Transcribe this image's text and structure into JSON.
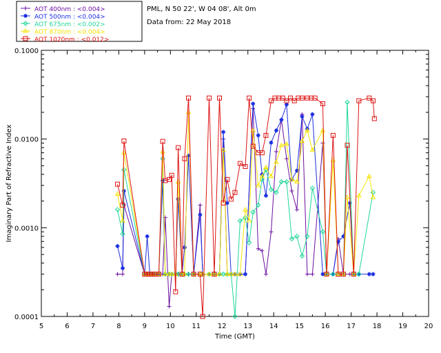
{
  "chart_data": {
    "type": "line",
    "title_lines": [
      "PML, N 50 22', W 04 08', Alt 0m",
      "Data from: 22 May 2018"
    ],
    "xlabel": "Time (GMT)",
    "ylabel": "Imaginary Part of Refractive Index",
    "xlim": [
      5,
      20
    ],
    "ylim": [
      0.0001,
      0.1
    ],
    "yscale": "log",
    "xticks": [
      5,
      6,
      7,
      8,
      9,
      10,
      11,
      12,
      13,
      14,
      15,
      16,
      17,
      18,
      19,
      20
    ],
    "xtick_labels": [
      "5",
      "6",
      "7",
      "8",
      "9",
      "10",
      "11",
      "12",
      "13",
      "14",
      "15",
      "16",
      "17",
      "18",
      "19",
      "20"
    ],
    "yticks": [
      0.0001,
      0.001,
      0.01,
      0.1
    ],
    "ytick_labels": [
      "0.0001",
      "0.0010",
      "0.0100",
      "0.1000"
    ],
    "legend_position": "top-left",
    "series": [
      {
        "name": "AOT  400nm : <0.004>",
        "color": "#6a0d9e",
        "marker": "plus",
        "x": [
          7.95,
          8.15,
          8.2,
          9.0,
          9.1,
          9.2,
          9.3,
          9.4,
          9.55,
          9.7,
          9.8,
          9.95,
          10.05,
          10.2,
          10.3,
          10.45,
          10.55,
          10.7,
          10.9,
          11.15,
          11.25,
          11.5,
          11.7,
          11.9,
          12.05,
          12.2,
          12.35,
          12.5,
          12.7,
          12.9,
          13.2,
          13.4,
          13.55,
          13.7,
          13.9,
          14.1,
          14.3,
          14.5,
          14.7,
          14.9,
          15.1,
          15.3,
          15.5,
          15.9,
          16.05,
          16.3,
          16.5,
          16.7,
          16.95,
          17.1,
          17.3
        ],
        "y": [
          0.0003,
          0.0003,
          0.0018,
          0.0003,
          0.0003,
          0.0003,
          0.0003,
          0.0003,
          0.0003,
          0.0003,
          0.0013,
          0.00013,
          0.0003,
          0.0003,
          0.0003,
          0.0003,
          0.0003,
          0.0003,
          0.0003,
          0.0018,
          0.0003,
          0.0003,
          0.0003,
          0.0003,
          0.01,
          0.0003,
          0.0003,
          0.0003,
          0.0003,
          0.0003,
          0.022,
          0.00058,
          0.00055,
          0.0003,
          0.0009,
          0.0072,
          0.0165,
          0.006,
          0.0026,
          0.0016,
          0.019,
          0.0003,
          0.0003,
          0.009,
          0.0003,
          0.0003,
          0.00075,
          0.0003,
          0.0003,
          0.0003,
          0.0003
        ]
      },
      {
        "name": "AOT  500nm : <0.004>",
        "color": "#1a2ee0",
        "marker": "star",
        "x": [
          7.95,
          8.15,
          8.2,
          9.0,
          9.1,
          9.2,
          9.3,
          9.4,
          9.55,
          9.7,
          9.8,
          9.95,
          10.05,
          10.2,
          10.3,
          10.45,
          10.55,
          10.7,
          10.9,
          11.15,
          11.25,
          11.5,
          11.7,
          11.9,
          12.05,
          12.2,
          12.35,
          12.5,
          12.7,
          12.9,
          13.2,
          13.4,
          13.55,
          13.7,
          13.9,
          14.1,
          14.3,
          14.5,
          14.7,
          14.9,
          15.1,
          15.3,
          15.5,
          15.9,
          16.05,
          16.3,
          16.5,
          16.7,
          16.95,
          17.1,
          17.3,
          17.7,
          17.85
        ],
        "y": [
          0.00062,
          0.00035,
          0.0026,
          0.0003,
          0.0008,
          0.0003,
          0.0003,
          0.0003,
          0.0003,
          0.0034,
          0.0003,
          0.0003,
          0.0003,
          0.0003,
          0.0021,
          0.0003,
          0.0006,
          0.0065,
          0.0003,
          0.0014,
          0.0003,
          0.0003,
          0.0003,
          0.0003,
          0.012,
          0.0019,
          0.0003,
          0.0003,
          0.0003,
          0.0003,
          0.025,
          0.011,
          0.004,
          0.0023,
          0.0091,
          0.0125,
          0.0165,
          0.0245,
          0.0035,
          0.0044,
          0.018,
          0.013,
          0.019,
          0.0003,
          0.0003,
          0.0003,
          0.0007,
          0.0008,
          0.0019,
          0.0003,
          0.0003,
          0.0003,
          0.0003
        ]
      },
      {
        "name": "AOT  675nm : <0.002>",
        "color": "#1ed699",
        "marker": "diamond",
        "x": [
          7.95,
          8.15,
          8.2,
          9.0,
          9.1,
          9.2,
          9.3,
          9.4,
          9.55,
          9.7,
          9.8,
          9.95,
          10.05,
          10.2,
          10.3,
          10.45,
          10.55,
          10.7,
          10.9,
          11.15,
          11.25,
          11.5,
          11.7,
          11.9,
          12.05,
          12.2,
          12.35,
          12.5,
          12.7,
          12.9,
          13.05,
          13.2,
          13.4,
          13.55,
          13.7,
          13.9,
          14.1,
          14.3,
          14.5,
          14.7,
          14.9,
          15.1,
          15.3,
          15.5,
          15.9,
          16.05,
          16.3,
          16.5,
          16.7,
          16.85,
          17.1,
          17.3,
          17.85
        ],
        "y": [
          0.0016,
          0.00085,
          0.0045,
          0.0003,
          0.0003,
          0.0003,
          0.0003,
          0.0003,
          0.0003,
          0.006,
          0.0003,
          0.0003,
          0.0003,
          0.0003,
          0.0003,
          0.0003,
          0.0003,
          0.0003,
          0.0003,
          0.0003,
          0.0003,
          0.0003,
          0.0003,
          0.0003,
          0.0003,
          0.0003,
          0.0003,
          0.0001,
          0.0012,
          0.0013,
          0.00068,
          0.0015,
          0.0018,
          0.0035,
          0.0045,
          0.0027,
          0.0025,
          0.0033,
          0.0033,
          0.00075,
          0.0008,
          0.00048,
          0.0008,
          0.0028,
          0.0009,
          0.0003,
          0.0003,
          0.0003,
          0.0003,
          0.026,
          0.0003,
          0.0003,
          0.0025
        ]
      },
      {
        "name": "AOT  870nm : <0.004>",
        "color": "#f5e400",
        "marker": "triangle",
        "x": [
          7.95,
          8.15,
          8.2,
          9.0,
          9.1,
          9.2,
          9.3,
          9.4,
          9.55,
          9.7,
          9.8,
          9.95,
          10.05,
          10.2,
          10.3,
          10.45,
          10.55,
          10.7,
          10.9,
          11.15,
          11.25,
          11.5,
          11.7,
          11.9,
          12.05,
          12.2,
          12.35,
          12.5,
          12.7,
          12.9,
          13.05,
          13.2,
          13.4,
          13.55,
          13.7,
          13.9,
          14.1,
          14.3,
          14.5,
          14.7,
          14.9,
          15.1,
          15.3,
          15.5,
          15.9,
          16.05,
          16.3,
          16.5,
          16.7,
          16.85,
          17.1,
          17.3,
          17.7,
          17.85
        ],
        "y": [
          0.0024,
          0.0012,
          0.007,
          0.0003,
          0.0003,
          0.0003,
          0.0003,
          0.0003,
          0.0003,
          0.0072,
          0.0003,
          0.0003,
          0.0003,
          0.0003,
          0.0033,
          0.0003,
          0.0003,
          0.02,
          0.0003,
          0.0003,
          0.0003,
          0.0003,
          0.0003,
          0.0003,
          0.0075,
          0.0003,
          0.0003,
          0.0003,
          0.0003,
          0.0016,
          0.0012,
          0.0125,
          0.003,
          0.0038,
          0.0048,
          0.0038,
          0.0055,
          0.0085,
          0.0088,
          0.0035,
          0.0033,
          0.0095,
          0.0125,
          0.0075,
          0.0125,
          0.0003,
          0.0058,
          0.0003,
          0.0003,
          0.0022,
          0.0003,
          0.0023,
          0.0038,
          0.0022
        ]
      },
      {
        "name": "AOT 1020nm : <0.012>",
        "color": "#dd1111",
        "marker": "square",
        "x": [
          7.95,
          8.15,
          8.2,
          9.0,
          9.1,
          9.2,
          9.3,
          9.4,
          9.55,
          9.7,
          9.8,
          9.95,
          10.05,
          10.2,
          10.3,
          10.45,
          10.55,
          10.7,
          10.9,
          11.15,
          11.25,
          11.5,
          11.7,
          11.9,
          12.05,
          12.2,
          12.35,
          12.5,
          12.7,
          12.9,
          13.05,
          13.2,
          13.4,
          13.55,
          13.7,
          13.9,
          14.05,
          14.2,
          14.35,
          14.5,
          14.65,
          14.8,
          14.95,
          15.1,
          15.3,
          15.45,
          15.6,
          15.9,
          16.05,
          16.3,
          16.5,
          16.7,
          16.85,
          17.1,
          17.3,
          17.7,
          17.85,
          17.9
        ],
        "y": [
          0.0031,
          0.0018,
          0.0095,
          0.0003,
          0.0003,
          0.0003,
          0.0003,
          0.0003,
          0.0003,
          0.0094,
          0.0034,
          0.0035,
          0.0039,
          0.00019,
          0.008,
          0.0003,
          0.006,
          0.029,
          0.0003,
          0.0003,
          0.0001,
          0.029,
          0.0003,
          0.029,
          0.0019,
          0.0035,
          0.0021,
          0.0025,
          0.0053,
          0.0049,
          0.029,
          0.0083,
          0.007,
          0.007,
          0.011,
          0.027,
          0.029,
          0.029,
          0.029,
          0.027,
          0.029,
          0.027,
          0.029,
          0.029,
          0.029,
          0.029,
          0.029,
          0.025,
          0.0003,
          0.011,
          0.0003,
          0.0003,
          0.0085,
          0.0003,
          0.027,
          0.029,
          0.027,
          0.017
        ]
      }
    ]
  }
}
